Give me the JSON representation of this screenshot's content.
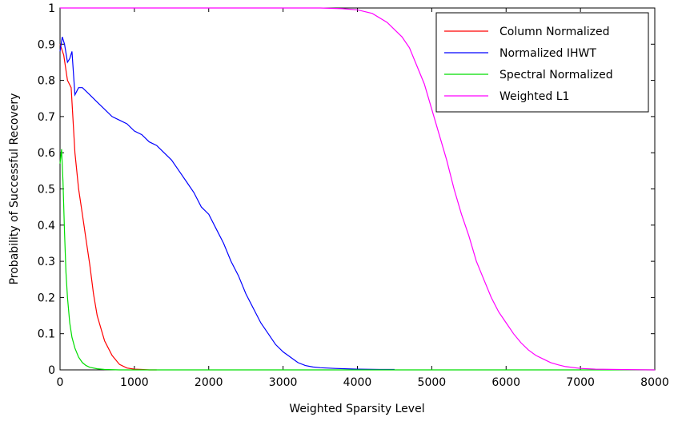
{
  "chart_data": {
    "type": "line",
    "title": "",
    "xlabel": "Weighted Sparsity Level",
    "ylabel": "Probability of Successful Recovery",
    "xlim": [
      0,
      8000
    ],
    "ylim": [
      0,
      1
    ],
    "xticks": [
      0,
      1000,
      2000,
      3000,
      4000,
      5000,
      6000,
      7000,
      8000
    ],
    "yticks": [
      0,
      0.1,
      0.2,
      0.3,
      0.4,
      0.5,
      0.6,
      0.7,
      0.8,
      0.9,
      1
    ],
    "xtick_labels": [
      "0",
      "1000",
      "2000",
      "3000",
      "4000",
      "5000",
      "6000",
      "7000",
      "8000"
    ],
    "ytick_labels": [
      "0",
      "0.1",
      "0.2",
      "0.3",
      "0.4",
      "0.5",
      "0.6",
      "0.7",
      "0.8",
      "0.9",
      "1"
    ],
    "grid": false,
    "legend_position": "top-right",
    "series": [
      {
        "name": "Column Normalized",
        "color": "#ff0000",
        "x": [
          0,
          50,
          100,
          150,
          200,
          250,
          300,
          350,
          400,
          450,
          500,
          600,
          700,
          800,
          900,
          1000,
          1100,
          1200,
          1300
        ],
        "y": [
          0.9,
          0.87,
          0.8,
          0.78,
          0.6,
          0.5,
          0.43,
          0.36,
          0.29,
          0.21,
          0.15,
          0.08,
          0.04,
          0.015,
          0.005,
          0.002,
          0.001,
          0,
          0
        ]
      },
      {
        "name": "Normalized IHWT",
        "color": "#0000ff",
        "x": [
          0,
          30,
          60,
          100,
          130,
          160,
          200,
          250,
          300,
          400,
          500,
          600,
          700,
          800,
          900,
          1000,
          1100,
          1200,
          1300,
          1400,
          1500,
          1600,
          1700,
          1800,
          1900,
          2000,
          2100,
          2200,
          2300,
          2400,
          2500,
          2600,
          2700,
          2800,
          2900,
          3000,
          3100,
          3200,
          3300,
          3400,
          3500,
          3700,
          4000,
          4300,
          4500
        ],
        "y": [
          0.88,
          0.92,
          0.9,
          0.85,
          0.86,
          0.88,
          0.76,
          0.78,
          0.78,
          0.76,
          0.74,
          0.72,
          0.7,
          0.69,
          0.68,
          0.66,
          0.65,
          0.63,
          0.62,
          0.6,
          0.58,
          0.55,
          0.52,
          0.49,
          0.45,
          0.43,
          0.39,
          0.35,
          0.3,
          0.26,
          0.21,
          0.17,
          0.13,
          0.1,
          0.07,
          0.05,
          0.035,
          0.02,
          0.012,
          0.008,
          0.006,
          0.004,
          0.002,
          0.001,
          0.001
        ]
      },
      {
        "name": "Spectral Normalized",
        "color": "#00dd00",
        "x": [
          0,
          20,
          40,
          60,
          80,
          100,
          130,
          160,
          200,
          250,
          300,
          350,
          400,
          500,
          600,
          800,
          1000,
          2000,
          4000,
          6000,
          8000
        ],
        "y": [
          0.57,
          0.61,
          0.52,
          0.38,
          0.27,
          0.2,
          0.13,
          0.09,
          0.06,
          0.035,
          0.02,
          0.012,
          0.007,
          0.003,
          0.001,
          0,
          0,
          0,
          0,
          0,
          0
        ]
      },
      {
        "name": "Weighted L1",
        "color": "#ff00ff",
        "x": [
          0,
          1000,
          2000,
          3000,
          3500,
          3800,
          4000,
          4200,
          4400,
          4600,
          4700,
          4800,
          4900,
          5000,
          5100,
          5200,
          5300,
          5400,
          5500,
          5600,
          5700,
          5800,
          5900,
          6000,
          6100,
          6200,
          6300,
          6400,
          6500,
          6600,
          6700,
          6800,
          7000,
          7200,
          7500,
          8000
        ],
        "y": [
          1,
          1,
          1,
          1,
          1,
          0.998,
          0.995,
          0.985,
          0.96,
          0.92,
          0.89,
          0.84,
          0.79,
          0.72,
          0.65,
          0.58,
          0.5,
          0.43,
          0.37,
          0.3,
          0.25,
          0.2,
          0.16,
          0.13,
          0.1,
          0.075,
          0.055,
          0.04,
          0.03,
          0.02,
          0.014,
          0.009,
          0.004,
          0.002,
          0.001,
          0
        ]
      }
    ]
  }
}
